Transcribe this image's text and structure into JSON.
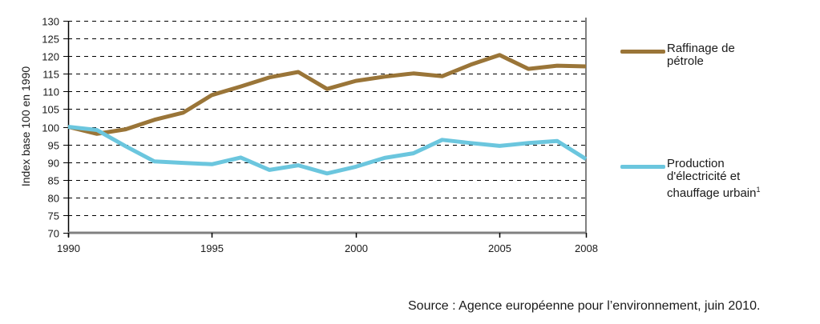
{
  "chart_data": {
    "type": "line",
    "title": "",
    "xlabel": "",
    "ylabel": "Index base 100 en 1990",
    "xlim": [
      1990,
      2008
    ],
    "ylim": [
      70,
      130
    ],
    "grid": "horizontal-dashed",
    "x": [
      1990,
      1991,
      1992,
      1993,
      1994,
      1995,
      1996,
      1997,
      1998,
      1999,
      2000,
      2001,
      2002,
      2003,
      2004,
      2005,
      2006,
      2007,
      2008
    ],
    "x_ticks": [
      1990,
      1995,
      2000,
      2005,
      2008
    ],
    "x_tick_labels": [
      "1990",
      "1995",
      "2000",
      "2005",
      "2008"
    ],
    "y_ticks": [
      70,
      75,
      80,
      85,
      90,
      95,
      100,
      105,
      110,
      115,
      120,
      125,
      130
    ],
    "y_tick_labels": [
      "70",
      "75",
      "80",
      "85",
      "90",
      "95",
      "100",
      "105",
      "110",
      "115",
      "120",
      "125",
      "130"
    ],
    "legend_position": "right",
    "series": [
      {
        "name": "Raffinage de\npétrole",
        "color": "#9a7538",
        "values": [
          100,
          98,
          99.3,
          102,
          104,
          109,
          111.4,
          114,
          115.5,
          110.7,
          113,
          114.2,
          115.1,
          114.3,
          117.6,
          120.3,
          116.4,
          117.3,
          117.1
        ]
      },
      {
        "name": "Production\nd'électricité et\nchauffage urbain",
        "superscript": "1",
        "color": "#6bc6de",
        "values": [
          100,
          99.1,
          94.5,
          90.2,
          89.8,
          89.4,
          91.3,
          87.8,
          89.1,
          86.8,
          88.7,
          91.2,
          92.5,
          96.3,
          95.4,
          94.6,
          95.4,
          96,
          90.9
        ]
      }
    ]
  },
  "source": "Source : Agence européenne pour l’environnement, juin 2010."
}
